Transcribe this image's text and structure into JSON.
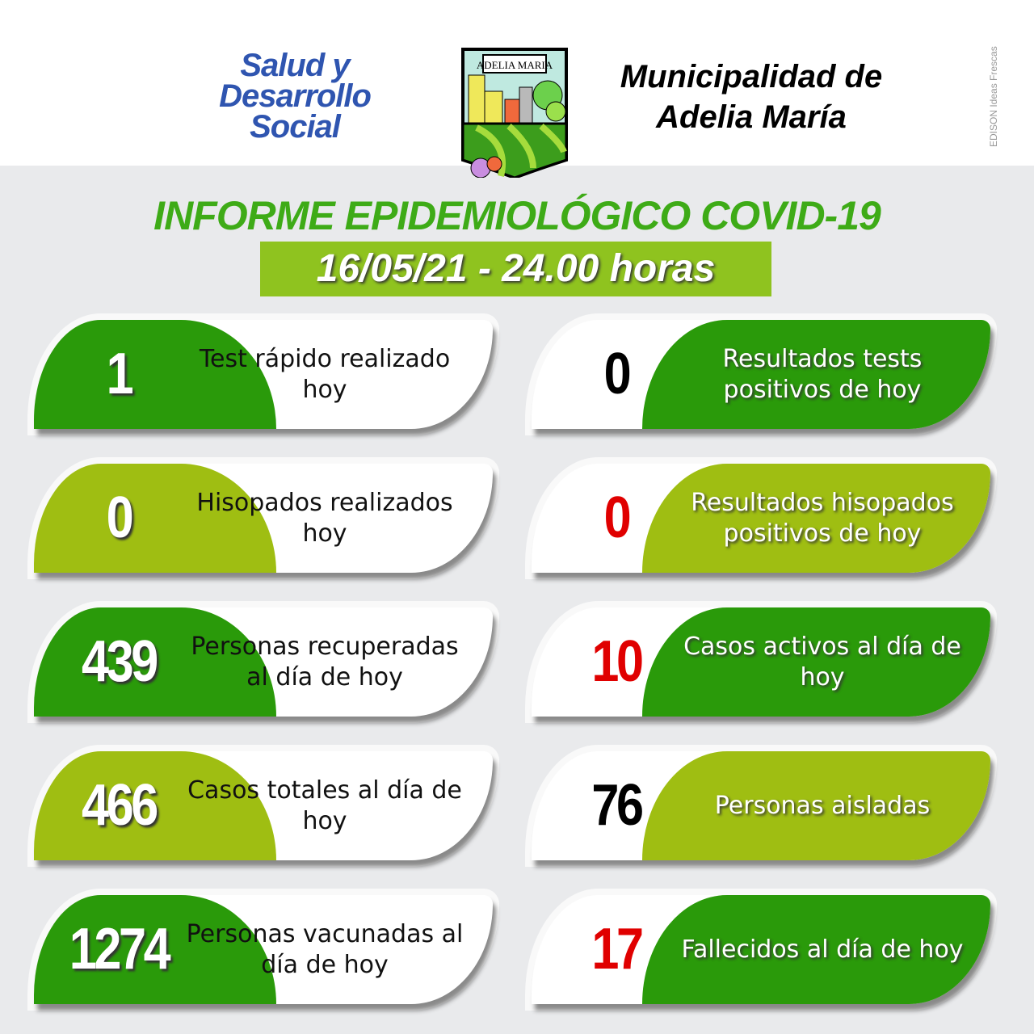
{
  "header": {
    "left_logo_text": "Salud y Desarrollo Social",
    "shield_text": "ADELIA MARIA",
    "municipality": "Municipalidad de Adelia María",
    "credit": "EDISON Ideas Frescas"
  },
  "title": "INFORME EPIDEMIOLÓGICO COVID-19",
  "date": "16/05/21 - 24.00 horas",
  "colors": {
    "dark_green": "#2a9a0a",
    "olive_green": "#9fbe12",
    "red": "#e00000"
  },
  "left_cards": [
    {
      "value": "1",
      "label": "Test rápido realizado hoy"
    },
    {
      "value": "0",
      "label": "Hisopados realizados hoy"
    },
    {
      "value": "439",
      "label": "Personas recuperadas al día de hoy"
    },
    {
      "value": "466",
      "label": "Casos totales al día de hoy"
    },
    {
      "value": "1274",
      "label": "Personas vacunadas al día de hoy"
    }
  ],
  "right_cards": [
    {
      "value": "0",
      "label": "Resultados tests positivos de hoy"
    },
    {
      "value": "0",
      "label": "Resultados hisopados positivos de hoy"
    },
    {
      "value": "10",
      "label": "Casos activos al día de hoy"
    },
    {
      "value": "76",
      "label": "Personas aisladas"
    },
    {
      "value": "17",
      "label": "Fallecidos al día de hoy"
    }
  ]
}
